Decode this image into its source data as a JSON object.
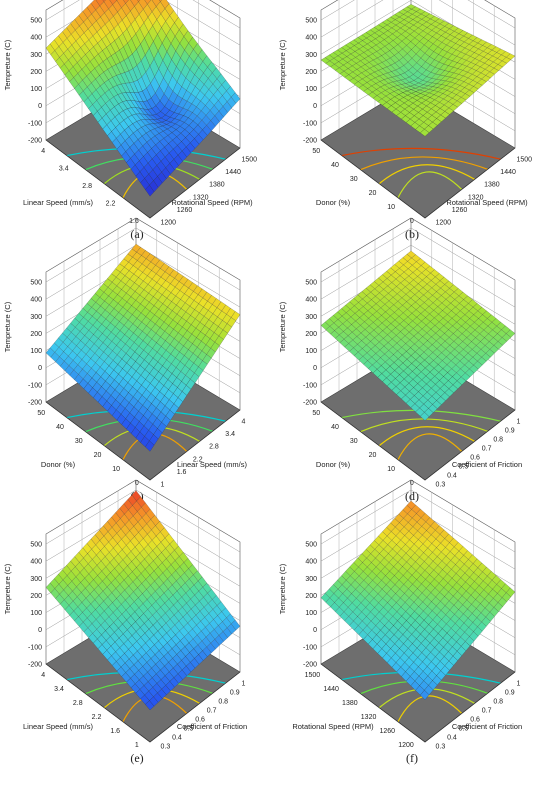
{
  "chart_data": [
    {
      "type": "surface",
      "panel_label": "(a)",
      "zlabel": "Tempreture (C)",
      "zticks": [
        "500",
        "400",
        "300",
        "200",
        "100",
        "0",
        "-100",
        "-200"
      ],
      "xlabel": "Linear Speed (mm/s)",
      "xticks": [
        "1.6",
        "2.2",
        "2.8",
        "3.4",
        "4"
      ],
      "ylabel": "Rotational Speed (RPM)",
      "yticks": [
        "1200",
        "1260",
        "1320",
        "1380",
        "1440",
        "1500"
      ],
      "corner_values": {
        "left": 290,
        "back": 500,
        "right": 40,
        "front": -120
      },
      "dip": {
        "u": 0.55,
        "v": 0.6,
        "depth": 190
      },
      "contour_colors": [
        "#00d0d0",
        "#40e060",
        "#a0e020",
        "#f0c000"
      ]
    },
    {
      "type": "surface",
      "panel_label": "(b)",
      "zlabel": "Tempreture (C)",
      "zticks": [
        "500",
        "400",
        "300",
        "200",
        "100",
        "0",
        "-100",
        "-200"
      ],
      "xlabel": "Donor (%)",
      "xticks": [
        "0",
        "10",
        "20",
        "30",
        "40",
        "50"
      ],
      "ylabel": "Rotational Speed (RPM)",
      "yticks": [
        "1200",
        "1260",
        "1320",
        "1380",
        "1440",
        "1500"
      ],
      "corner_values": {
        "left": 220,
        "back": 230,
        "right": 290,
        "front": 230
      },
      "dip": {
        "u": 0.5,
        "v": 0.5,
        "depth": 80
      },
      "contour_colors": [
        "#e04000",
        "#f0a000",
        "#f0d000",
        "#c0e020"
      ]
    },
    {
      "type": "surface",
      "panel_label": "(c)",
      "zlabel": "Tempreture (C)",
      "zticks": [
        "500",
        "400",
        "300",
        "200",
        "100",
        "0",
        "-100",
        "-200"
      ],
      "xlabel": "Donor (%)",
      "xticks": [
        "0",
        "10",
        "20",
        "30",
        "40",
        "50"
      ],
      "ylabel": "Linear Speed (mm/s)",
      "yticks": [
        "1",
        "1.6",
        "2.2",
        "2.8",
        "3.4",
        "4"
      ],
      "corner_values": {
        "left": 40,
        "back": 360,
        "right": 310,
        "front": -80
      },
      "dip": {
        "u": 0.5,
        "v": 0.5,
        "depth": 0
      },
      "contour_colors": [
        "#00d0d0",
        "#40e060",
        "#c0e020",
        "#f0a000"
      ]
    },
    {
      "type": "surface",
      "panel_label": "(d)",
      "zlabel": "Tempreture (C)",
      "zticks": [
        "500",
        "400",
        "300",
        "200",
        "100",
        "0",
        "-100",
        "-200"
      ],
      "xlabel": "Donor (%)",
      "xticks": [
        "0",
        "10",
        "20",
        "30",
        "40",
        "50"
      ],
      "ylabel": "Coefficient of Friction",
      "yticks": [
        "0.3",
        "0.4",
        "0.5",
        "0.6",
        "0.7",
        "0.8",
        "0.9",
        "1"
      ],
      "corner_values": {
        "left": 200,
        "back": 320,
        "right": 200,
        "front": 100
      },
      "dip": {
        "u": 0.5,
        "v": 0.5,
        "depth": 0
      },
      "contour_colors": [
        "#80e040",
        "#c0e020",
        "#f0d000",
        "#f0b000"
      ]
    },
    {
      "type": "surface",
      "panel_label": "(e)",
      "zlabel": "Tempreture (C)",
      "zticks": [
        "500",
        "400",
        "300",
        "200",
        "100",
        "0",
        "-100",
        "-200"
      ],
      "xlabel": "Linear Speed (mm/s)",
      "xticks": [
        "1",
        "1.6",
        "2.2",
        "2.8",
        "3.4",
        "4"
      ],
      "ylabel": "Coefficient of Friction",
      "yticks": [
        "0.3",
        "0.4",
        "0.5",
        "0.6",
        "0.7",
        "0.8",
        "0.9",
        "1"
      ],
      "corner_values": {
        "left": 200,
        "back": 450,
        "right": 20,
        "front": -60
      },
      "dip": {
        "u": 0.5,
        "v": 0.5,
        "depth": 0
      },
      "contour_colors": [
        "#00d0d0",
        "#60e040",
        "#f0d000",
        "#f0a000"
      ]
    },
    {
      "type": "surface",
      "panel_label": "(f)",
      "zlabel": "Tempreture (C)",
      "zticks": [
        "500",
        "400",
        "300",
        "200",
        "100",
        "0",
        "-100",
        "-200"
      ],
      "xlabel": "Rotational Speed (RPM)",
      "xticks": [
        "1200",
        "1260",
        "1320",
        "1380",
        "1440",
        "1500"
      ],
      "ylabel": "Coefficient of Friction",
      "yticks": [
        "0.3",
        "0.4",
        "0.5",
        "0.6",
        "0.7",
        "0.8",
        "0.9",
        "1"
      ],
      "corner_values": {
        "left": 140,
        "back": 390,
        "right": 220,
        "front": 0
      },
      "dip": {
        "u": 0.5,
        "v": 0.5,
        "depth": 0
      },
      "contour_colors": [
        "#00d0d0",
        "#60e040",
        "#c0e020",
        "#f0d000"
      ]
    }
  ]
}
